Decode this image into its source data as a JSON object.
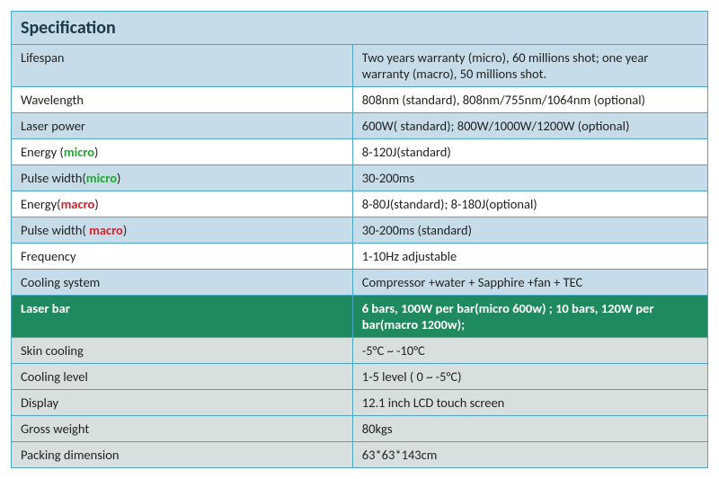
{
  "title": "Specification",
  "colors": {
    "header_bg": "#c6dde9",
    "blue_row_bg": "#c6dde9",
    "white_row_bg": "#ffffff",
    "grey_row_bg": "#d9dfdc",
    "green_row_bg": "#1f8a5f",
    "border": "#4aa7c4",
    "micro_text": "#1eaa2e",
    "macro_text": "#d6202a",
    "green_row_text": "#ffffff"
  },
  "rows": [
    {
      "style": "blue",
      "label_pre": "Lifespan",
      "label_hl": "",
      "label_post": "",
      "value": "Two years warranty  (micro), 60 millions shot; one year warranty (macro), 50 millions shot."
    },
    {
      "style": "white",
      "label_pre": "Wavelength",
      "label_hl": "",
      "label_post": "",
      "value": "808nm (standard), 808nm/755nm/1064nm (optional)"
    },
    {
      "style": "blue",
      "label_pre": "Laser power",
      "label_hl": "",
      "label_post": "",
      "value": "600W( standard);  800W/1000W/1200W (optional)"
    },
    {
      "style": "white",
      "label_pre": "Energy (",
      "label_hl": "micro",
      "hl_class": "micro",
      "label_post": ")",
      "value": "8-120J(standard)"
    },
    {
      "style": "blue",
      "label_pre": "Pulse width(",
      "label_hl": "micro",
      "hl_class": "micro",
      "label_post": ")",
      "value": "30-200ms"
    },
    {
      "style": "white",
      "label_pre": "Energy(",
      "label_hl": "macro",
      "hl_class": "macro",
      "label_post": ")",
      "value": "8-80J(standard);  8-180J(optional)"
    },
    {
      "style": "blue",
      "label_pre": "Pulse width( ",
      "label_hl": "macro",
      "hl_class": "macro",
      "label_post": ")",
      "value": "30-200ms (standard)"
    },
    {
      "style": "white",
      "label_pre": "Frequency",
      "label_hl": "",
      "label_post": "",
      "value": "1-10Hz adjustable"
    },
    {
      "style": "blue",
      "label_pre": "Cooling system",
      "label_hl": "",
      "label_post": "",
      "value": "Compressor +water + Sapphire +fan + TEC"
    },
    {
      "style": "green",
      "label_pre": "Laser bar",
      "label_hl": "",
      "label_post": "",
      "value": "6 bars, 100W per bar(micro 600w) ; 10 bars, 120W per bar(macro 1200w);"
    },
    {
      "style": "grey",
      "label_pre": "Skin cooling",
      "label_hl": "",
      "label_post": "",
      "value": "-5°C ~ -10°C"
    },
    {
      "style": "grey",
      "label_pre": "Cooling level",
      "label_hl": "",
      "label_post": "",
      "value": "1-5 level ( 0 ~ -5°C)"
    },
    {
      "style": "grey",
      "label_pre": "Display",
      "label_hl": "",
      "label_post": "",
      "value": "12.1 inch LCD touch screen"
    },
    {
      "style": "grey",
      "label_pre": "Gross weight",
      "label_hl": "",
      "label_post": "",
      "value": "80kgs"
    },
    {
      "style": "grey",
      "label_pre": "Packing dimension",
      "label_hl": "",
      "label_post": "",
      "value": "63*63*143cm"
    }
  ]
}
